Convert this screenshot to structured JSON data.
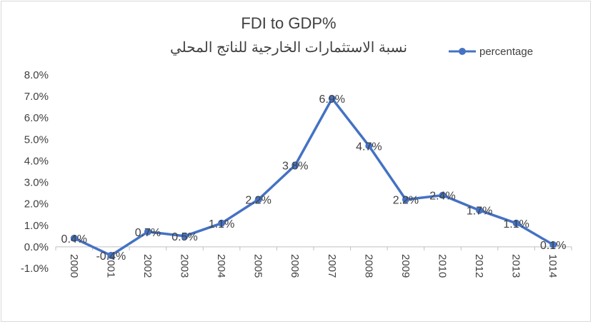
{
  "chart_data": {
    "type": "line",
    "title": "FDI to GDP%",
    "subtitle": "نسبة الاستثمارات الخارجية للناتج المحلي",
    "xlabel": "",
    "ylabel": "",
    "categories": [
      "2000",
      "2001",
      "2002",
      "2003",
      "2004",
      "2005",
      "2006",
      "2007",
      "2008",
      "2009",
      "2010",
      "2012",
      "2013",
      "1014"
    ],
    "series": [
      {
        "name": "percentage",
        "color": "#4472c4",
        "values": [
          0.4,
          -0.4,
          0.7,
          0.5,
          1.1,
          2.2,
          3.8,
          6.9,
          4.7,
          2.2,
          2.4,
          1.7,
          1.1,
          0.1
        ],
        "labels": [
          "0.4%",
          "-0.4%",
          "0.7%",
          "0.5%",
          "1.1%",
          "2.2%",
          "3.8%",
          "6.9%",
          "4.7%",
          "2.2%",
          "2.4%",
          "1.7%",
          "1.1%",
          "0.1%"
        ]
      }
    ],
    "ylim": [
      -1.0,
      8.0
    ],
    "yticks": [
      -1.0,
      0.0,
      1.0,
      2.0,
      3.0,
      4.0,
      5.0,
      6.0,
      7.0,
      8.0
    ],
    "ytick_labels": [
      "-1.0%",
      "0.0%",
      "1.0%",
      "2.0%",
      "3.0%",
      "4.0%",
      "5.0%",
      "6.0%",
      "7.0%",
      "8.0%"
    ],
    "grid": false,
    "legend": "top-right"
  }
}
